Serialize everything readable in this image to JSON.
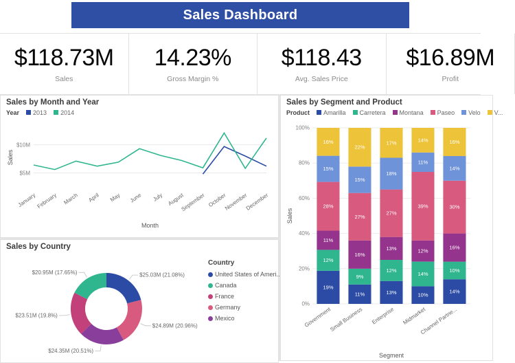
{
  "accent": "#2E4FA3",
  "header": {
    "title": "Sales Dashboard"
  },
  "kpis": [
    {
      "value": "$118.73M",
      "label": "Sales"
    },
    {
      "value": "14.23%",
      "label": "Gross Margin %"
    },
    {
      "value": "$118.43",
      "label": "Avg. Sales Price"
    },
    {
      "value": "$16.89M",
      "label": "Profit"
    }
  ],
  "chart_data": [
    {
      "id": "sales-by-month-and-year",
      "type": "line",
      "title": "Sales by Month and Year",
      "legend_title": "Year",
      "legend_position": "top",
      "xlabel": "Month",
      "ylabel": "Sales",
      "grid": true,
      "x": [
        "January",
        "February",
        "March",
        "April",
        "May",
        "June",
        "July",
        "August",
        "September",
        "October",
        "November",
        "December"
      ],
      "ylim": [
        2,
        13.5
      ],
      "yticks": [
        {
          "value": 5,
          "label": "$5M"
        },
        {
          "value": 10,
          "label": "$10M"
        }
      ],
      "series": [
        {
          "name": "2013",
          "color": "#2B4BA5",
          "values": [
            null,
            null,
            null,
            null,
            null,
            null,
            null,
            null,
            4.8,
            9.7,
            8.0,
            6.2
          ]
        },
        {
          "name": "2014",
          "color": "#2FB68F",
          "values": [
            6.4,
            5.6,
            7.1,
            6.2,
            6.9,
            9.3,
            8.1,
            7.2,
            5.9,
            12.1,
            5.8,
            11.2
          ]
        }
      ]
    },
    {
      "id": "sales-by-country",
      "type": "pie",
      "donut": true,
      "title": "Sales by Country",
      "legend_title": "Country",
      "legend_position": "right",
      "segments": [
        {
          "name": "United States of Ameri...",
          "color": "#2B4BA5",
          "value": 21.08,
          "callout": "$25.03M (21.08%)"
        },
        {
          "name": "Germany",
          "color": "#D85A7F",
          "value": 20.96,
          "callout": "$24.89M (20.96%)"
        },
        {
          "name": "Mexico",
          "color": "#8A3E9C",
          "value": 20.51,
          "callout": "$24.35M (20.51%)"
        },
        {
          "name": "France",
          "color": "#C2417A",
          "value": 19.8,
          "callout": "$23.51M (19.8%)"
        },
        {
          "name": "Canada",
          "color": "#2FB68F",
          "value": 17.65,
          "callout": "$20.95M (17.65%)"
        }
      ],
      "legend_order": [
        "United States of Ameri...",
        "Canada",
        "France",
        "Germany",
        "Mexico"
      ]
    },
    {
      "id": "sales-by-segment-and-product",
      "type": "bar",
      "stacked": true,
      "percent": true,
      "title": "Sales by Segment and Product",
      "legend_title": "Product",
      "legend_position": "top",
      "xlabel": "Segment",
      "ylabel": "Sales",
      "grid": true,
      "ylim": [
        0,
        100
      ],
      "categories": [
        "Government",
        "Small Business",
        "Enterprise",
        "Midmarket",
        "Channel Partne..."
      ],
      "yticks": [
        {
          "value": 0,
          "label": "0%"
        },
        {
          "value": 20,
          "label": "20%"
        },
        {
          "value": 40,
          "label": "40%"
        },
        {
          "value": 60,
          "label": "60%"
        },
        {
          "value": 80,
          "label": "80%"
        },
        {
          "value": 100,
          "label": "100%"
        }
      ],
      "series": [
        {
          "name": "Amarilla",
          "color": "#2B4BA5",
          "values": [
            19,
            11,
            13,
            10,
            14
          ]
        },
        {
          "name": "Carretera",
          "color": "#2FB68F",
          "values": [
            12,
            9,
            12,
            14,
            10
          ]
        },
        {
          "name": "Montana",
          "color": "#94348C",
          "values": [
            11,
            16,
            13,
            12,
            16
          ]
        },
        {
          "name": "Paseo",
          "color": "#D85A7F",
          "values": [
            28,
            27,
            27,
            39,
            30
          ]
        },
        {
          "name": "Velo",
          "color": "#6F93D9",
          "values": [
            15,
            15,
            18,
            11,
            14
          ]
        },
        {
          "name": "V...",
          "color": "#ECC339",
          "values": [
            16,
            22,
            17,
            14,
            16
          ]
        }
      ]
    }
  ]
}
